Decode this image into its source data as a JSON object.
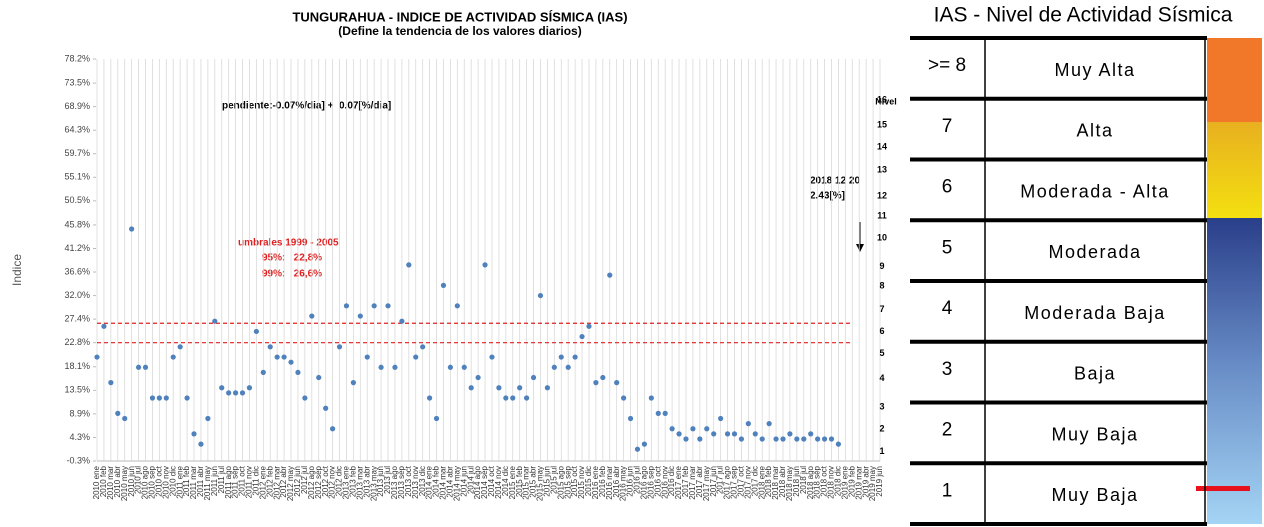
{
  "chart_data": {
    "type": "scatter",
    "title": "TUNGURAHUA - INDICE DE ACTIVIDAD SÍSMICA (IAS)",
    "subtitle": "(Define la tendencia de los valores diarios)",
    "y_label": "Indice",
    "y2_label": "Nivel",
    "categories": [
      "2010 ene",
      "2010 feb",
      "2010 mar",
      "2010 abr",
      "2010 may",
      "2010 jun",
      "2010 jul",
      "2010 ago",
      "2010 sep",
      "2010 oct",
      "2010 nov",
      "2010 dic",
      "2011 ene",
      "2011 feb",
      "2011 mar",
      "2011 abr",
      "2011 may",
      "2011 jun",
      "2011 jul",
      "2011 ago",
      "2011 sep",
      "2011 oct",
      "2011 nov",
      "2011 dic",
      "2012 ene",
      "2012 feb",
      "2012 mar",
      "2012 abr",
      "2012 may",
      "2012 jun",
      "2012 jul",
      "2012 ago",
      "2012 sep",
      "2012 oct",
      "2012 nov",
      "2012 dic",
      "2013 ene",
      "2013 feb",
      "2013 mar",
      "2013 abr",
      "2013 may",
      "2013 jun",
      "2013 jul",
      "2013 ago",
      "2013 sep",
      "2013 oct",
      "2013 nov",
      "2013 dic",
      "2014 ene",
      "2014 feb",
      "2014 mar",
      "2014 abr",
      "2014 may",
      "2014 jun",
      "2014 jul",
      "2014 ago",
      "2014 sep",
      "2014 oct",
      "2014 nov",
      "2014 dic",
      "2015 ene",
      "2015 feb",
      "2015 mar",
      "2015 abr",
      "2015 may",
      "2015 jun",
      "2015 jul",
      "2015 ago",
      "2015 sep",
      "2015 oct",
      "2015 nov",
      "2015 dic",
      "2016 ene",
      "2016 feb",
      "2016 mar",
      "2016 abr",
      "2016 may",
      "2016 jun",
      "2016 jul",
      "2016 ago",
      "2016 sep",
      "2016 oct",
      "2016 nov",
      "2016 dic",
      "2017 ene",
      "2017 feb",
      "2017 mar",
      "2017 abr",
      "2017 may",
      "2017 jun",
      "2017 jul",
      "2017 ago",
      "2017 sep",
      "2017 oct",
      "2017 nov",
      "2017 dic",
      "2018 ene",
      "2018 feb",
      "2018 mar",
      "2018 abr",
      "2018 may",
      "2018 jun",
      "2018 jul",
      "2018 ago",
      "2018 sep",
      "2018 oct",
      "2018 nov",
      "2018 dic",
      "2019 ene",
      "2019 feb",
      "2019 mar",
      "2019 abr",
      "2019 may",
      "2019 jun"
    ],
    "series": [
      {
        "name": "IAS",
        "color": "#4f81bd",
        "values": [
          20,
          26,
          15,
          9,
          8,
          45,
          18,
          18,
          12,
          12,
          12,
          20,
          22,
          12,
          5,
          3,
          8,
          27,
          14,
          13,
          13,
          13,
          14,
          25,
          17,
          22,
          20,
          20,
          19,
          17,
          12,
          28,
          16,
          10,
          6,
          22,
          30,
          15,
          28,
          20,
          30,
          18,
          30,
          18,
          27,
          38,
          20,
          22,
          12,
          8,
          34,
          18,
          30,
          18,
          14,
          16,
          38,
          20,
          14,
          12,
          12,
          14,
          12,
          16,
          32,
          14,
          18,
          20,
          18,
          20,
          24,
          26,
          15,
          16,
          36,
          15,
          12,
          8,
          2,
          3,
          12,
          9,
          9,
          6,
          5,
          4,
          6,
          4,
          6,
          5,
          8,
          5,
          5,
          4,
          7,
          5,
          4,
          7,
          4,
          4,
          5,
          4,
          4,
          5,
          4,
          4,
          4,
          3,
          null,
          null,
          null,
          null,
          null,
          null
        ]
      }
    ],
    "ylim": [
      -0.3,
      78.2
    ],
    "yticks": [
      {
        "value": -0.3,
        "label": "-0.3%"
      },
      {
        "value": 4.3,
        "label": "4.3%"
      },
      {
        "value": 8.9,
        "label": "8.9%"
      },
      {
        "value": 13.5,
        "label": "13.5%"
      },
      {
        "value": 18.1,
        "label": "18.1%"
      },
      {
        "value": 22.8,
        "label": "22.8%"
      },
      {
        "value": 27.4,
        "label": "27.4%"
      },
      {
        "value": 32.0,
        "label": "32.0%"
      },
      {
        "value": 36.6,
        "label": "36.6%"
      },
      {
        "value": 41.2,
        "label": "41.2%"
      },
      {
        "value": 45.8,
        "label": "45.8%"
      },
      {
        "value": 50.5,
        "label": "50.5%"
      },
      {
        "value": 55.1,
        "label": "55.1%"
      },
      {
        "value": 59.7,
        "label": "59.7%"
      },
      {
        "value": 64.3,
        "label": "64.3%"
      },
      {
        "value": 68.9,
        "label": "68.9%"
      },
      {
        "value": 73.5,
        "label": "73.5%"
      },
      {
        "value": 78.2,
        "label": "78.2%"
      }
    ],
    "y2ticks": [
      {
        "value": 1.5,
        "label": "1"
      },
      {
        "value": 5.9,
        "label": "2"
      },
      {
        "value": 10.2,
        "label": "3"
      },
      {
        "value": 15.8,
        "label": "4"
      },
      {
        "value": 20.7,
        "label": "5"
      },
      {
        "value": 25.0,
        "label": "6"
      },
      {
        "value": 29.3,
        "label": "7"
      },
      {
        "value": 33.8,
        "label": "8"
      },
      {
        "value": 37.7,
        "label": "9"
      },
      {
        "value": 43.2,
        "label": "10"
      },
      {
        "value": 47.5,
        "label": "11"
      },
      {
        "value": 51.4,
        "label": "12"
      },
      {
        "value": 56.5,
        "label": "13"
      },
      {
        "value": 61.0,
        "label": "14"
      },
      {
        "value": 65.3,
        "label": "15"
      },
      {
        "value": 70.2,
        "label": "16"
      }
    ],
    "thresholds": [
      22.8,
      26.6
    ],
    "annotations": {
      "slope": "pendiente:-0.07%/dia] +  0.07[%/dia]",
      "threshold_title": "umbrales 1999 - 2005",
      "threshold_95": "95%:   22,8%",
      "threshold_99": "99%:   26,6%",
      "last_date": "2018 12 20",
      "last_value": "2.43[%]"
    },
    "grid": true
  },
  "table": {
    "title": "IAS - Nivel de Actividad Sísmica",
    "rows": [
      [
        ">= 8",
        "Muy Alta"
      ],
      [
        "7",
        "Alta"
      ],
      [
        "6",
        "Moderada - Alta"
      ],
      [
        "5",
        "Moderada"
      ],
      [
        "4",
        "Moderada Baja"
      ],
      [
        "3",
        "Baja"
      ],
      [
        "2",
        "Muy Baja"
      ],
      [
        "1",
        "Muy Baja"
      ]
    ]
  }
}
